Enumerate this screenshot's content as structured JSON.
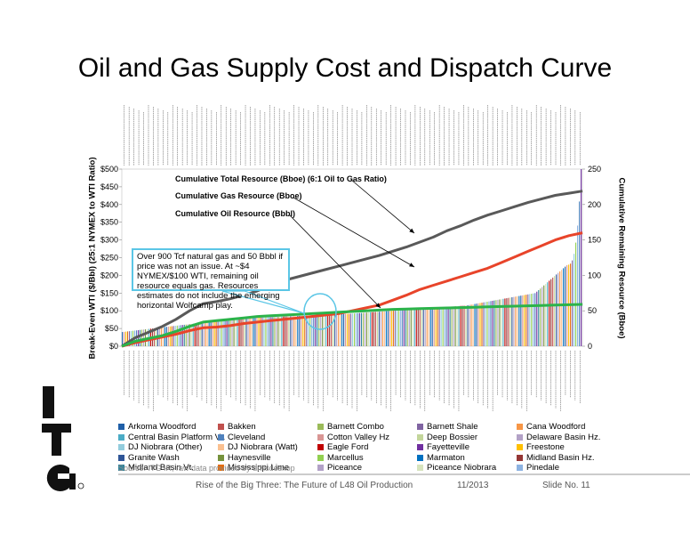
{
  "title": "Oil and Gas Supply Cost and Dispatch Curve",
  "chart_data": {
    "type": "bar",
    "left_axis": {
      "label": "Break-Even WTI ($/Bbl) (25:1 NYMEX to WTI Ratio)",
      "ylim": [
        0,
        500
      ],
      "ticks": [
        "$0",
        "$50",
        "$100",
        "$150",
        "$200",
        "$250",
        "$300",
        "$350",
        "$400",
        "$450",
        "$500"
      ]
    },
    "right_axis": {
      "label": "Cumulative Remaining Resource (Bboe)",
      "ylim": [
        0,
        250
      ],
      "ticks": [
        "0",
        "50",
        "100",
        "150",
        "200",
        "250"
      ]
    },
    "bar_count": 260,
    "break_even_values_sorted": {
      "min": 40,
      "at_25pct": 78,
      "at_50pct": 92,
      "at_75pct": 115,
      "at_90pct": 150,
      "at_97pct": 230,
      "max": 500
    },
    "series": [
      {
        "name": "Cumulative Total Resource (Bboe) (6:1 Oil to Gas Ratio)",
        "color": "#595959",
        "axis": "right",
        "values": [
          0,
          12,
          20,
          28,
          38,
          50,
          60,
          63,
          67,
          72,
          78,
          86,
          93,
          98,
          103,
          108,
          113,
          118,
          123,
          128,
          134,
          140,
          147,
          154,
          163,
          170,
          178,
          185,
          191,
          197,
          203,
          208,
          213,
          216,
          219
        ]
      },
      {
        "name": "Cumulative Gas Resource (Bboe)",
        "color": "#e8442a",
        "axis": "right",
        "values": [
          0,
          5,
          9,
          13,
          17,
          22,
          26,
          27,
          29,
          32,
          34,
          36,
          38,
          40,
          42,
          44,
          46,
          50,
          54,
          58,
          65,
          72,
          80,
          86,
          92,
          98,
          104,
          110,
          118,
          126,
          134,
          142,
          150,
          156,
          160
        ]
      },
      {
        "name": "Cumulative Oil Resource (Bbbl)",
        "color": "#2bb34a",
        "axis": "right",
        "values": [
          0,
          7,
          11,
          15,
          21,
          28,
          34,
          36,
          38,
          40,
          42,
          43,
          44,
          45,
          46,
          47,
          48,
          49,
          50,
          51,
          52,
          52.5,
          53,
          53.5,
          54,
          54.5,
          55,
          55.5,
          56,
          56.5,
          57,
          57.5,
          58,
          58.5,
          59
        ]
      }
    ],
    "annotations": [
      "Cumulative Total Resource (Bboe) (6:1 Oil to Gas Ratio)",
      "Cumulative Gas Resource (Bboe)",
      "Cumulative Oil Resource (Bbbl)"
    ],
    "callout": "Over 900 Tcf natural gas and 50 Bbbl if price was not an issue. At ~$4 NYMEX/$100 WTI, remaining oil resource equals gas. Resources estimates do not include the emerging horizontal Wolfcamp play.",
    "legend": [
      {
        "name": "Arkoma Woodford",
        "color": "#1f5fa8"
      },
      {
        "name": "Bakken",
        "color": "#c0504d"
      },
      {
        "name": "Barnett Combo",
        "color": "#9bbb59"
      },
      {
        "name": "Barnett Shale",
        "color": "#8064a2"
      },
      {
        "name": "Cana Woodford",
        "color": "#f79646"
      },
      {
        "name": "Central Basin Platform Vt.",
        "color": "#4bacc6"
      },
      {
        "name": "Cleveland",
        "color": "#4f81bd"
      },
      {
        "name": "Cotton Valley Hz",
        "color": "#d99694"
      },
      {
        "name": "Deep Bossier",
        "color": "#c3d69b"
      },
      {
        "name": "Delaware Basin Hz.",
        "color": "#b3a2c7"
      },
      {
        "name": "DJ Niobrara (Other)",
        "color": "#93cddd"
      },
      {
        "name": "DJ Niobrara (Watt)",
        "color": "#fac090"
      },
      {
        "name": "Eagle Ford",
        "color": "#c00000"
      },
      {
        "name": "Fayetteville",
        "color": "#7030a0"
      },
      {
        "name": "Freestone",
        "color": "#ffc000"
      },
      {
        "name": "Granite Wash",
        "color": "#2f5597"
      },
      {
        "name": "Haynesville",
        "color": "#76923c"
      },
      {
        "name": "Marcellus",
        "color": "#92d050"
      },
      {
        "name": "Marmaton",
        "color": "#0070c0"
      },
      {
        "name": "Midland Basin Hz.",
        "color": "#953735"
      },
      {
        "name": "Midland Basin Vt.",
        "color": "#31859c"
      },
      {
        "name": "Mississippi Lime",
        "color": "#e46c0a"
      },
      {
        "name": "Piceance",
        "color": "#b2a1c7"
      },
      {
        "name": "Piceance Niobrara",
        "color": "#d7e4bd"
      },
      {
        "name": "Pinedale",
        "color": "#8db3e2"
      }
    ]
  },
  "source": "Source: ITG IR, raw data provided by drillsdeskop",
  "footer": {
    "subtitle": "Rise of the Big Three: The Future of L48 Oil Production",
    "date": "11/2013",
    "slide": "Slide No. 11"
  }
}
